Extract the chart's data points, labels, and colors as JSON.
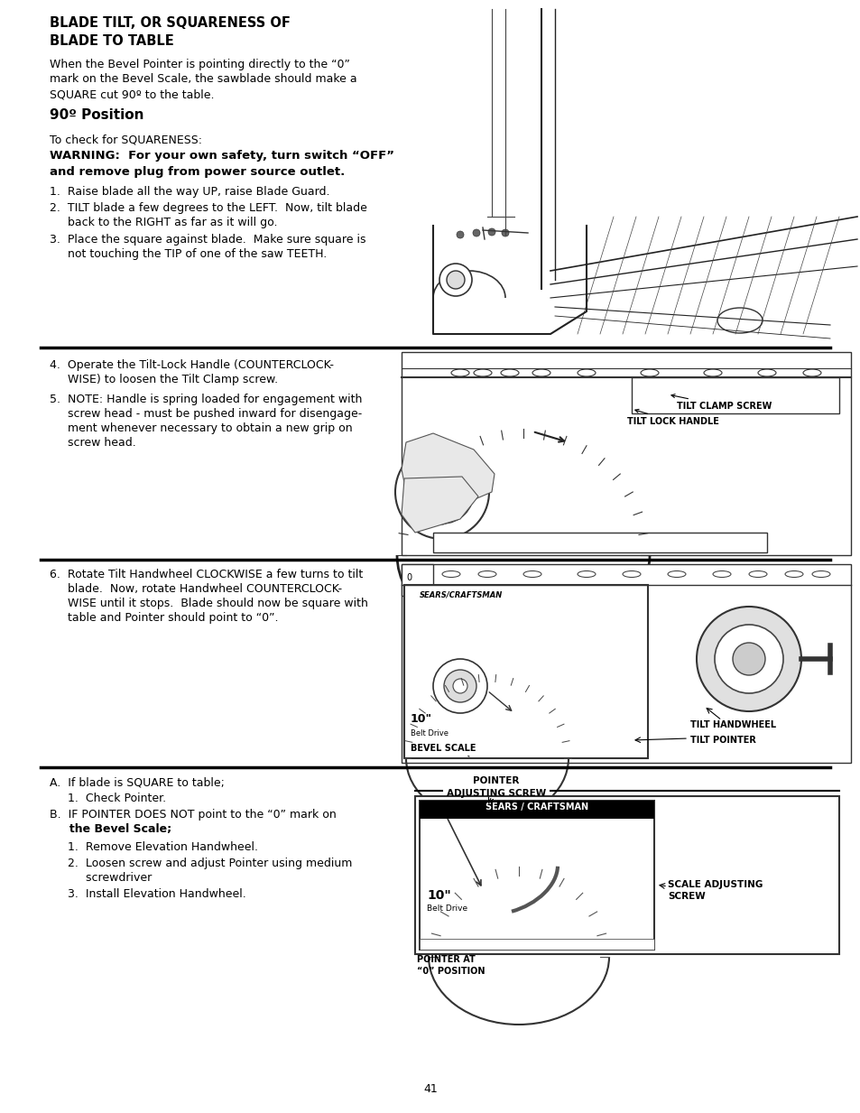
{
  "bg_color": "#ffffff",
  "page_number": "41",
  "title_line1": "BLADE TILT, OR SQUARENESS OF",
  "title_line2": "BLADE TO TABLE",
  "intro_text": "When the Bevel Pointer is pointing directly to the “0”\nmark on the Bevel Scale, the sawblade should make a\nSQUARE cut 90º to the table.",
  "subheading": "90º Position",
  "check_text": "To check for SQUARENESS:",
  "warning_line1": "WARNING:  For your own safety, turn switch “OFF”",
  "warning_line2": "and remove plug from power source outlet.",
  "step1": "1.  Raise blade all the way UP, raise Blade Guard.",
  "step2a": "2.  TILT blade a few degrees to the LEFT.  Now, tilt blade",
  "step2b": "     back to the RIGHT as far as it will go.",
  "step3a": "3.  Place the square against blade.  Make sure square is",
  "step3b": "     not touching the TIP of one of the saw TEETH.",
  "step4a": "4.  Operate the Tilt-Lock Handle (COUNTERCLOCK-",
  "step4b": "     WISE) to loosen the Tilt Clamp screw.",
  "step5a": "5.  NOTE: Handle is spring loaded for engagement with",
  "step5b": "     screw head - must be pushed inward for disengage-",
  "step5c": "     ment whenever necessary to obtain a new grip on",
  "step5d": "     screw head.",
  "step6a": "6.  Rotate Tilt Handwheel CLOCKWISE a few turns to tilt",
  "step6b": "     blade.  Now, rotate Handwheel COUNTERCLOCK-",
  "step6c": "     WISE until it stops.  Blade should now be square with",
  "step6d": "     table and Pointer should point to “0”.",
  "stepA": "A.  If blade is SQUARE to table;",
  "stepA1": "     1.  Check Pointer.",
  "stepB": "B.  IF POINTER DOES NOT point to the “0” mark on",
  "stepBb": "     the Bevel Scale;",
  "stepB1": "     1.  Remove Elevation Handwheel.",
  "stepB2a": "     2.  Loosen screw and adjust Pointer using medium",
  "stepB2b": "          screwdriver",
  "stepB3": "     3.  Install Elevation Handwheel.",
  "label_tilt_clamp": "TILT CLAMP SCREW",
  "label_tilt_lock": "TILT LOCK HANDLE",
  "label_bevel_scale": "BEVEL SCALE",
  "label_tilt_handwheel": "TILT HANDWHEEL",
  "label_tilt_pointer": "TILT POINTER",
  "label_pointer_adj": "POINTER\nADJUSTING SCREW",
  "label_scale_adj": "SCALE ADJUSTING\nSCREW",
  "label_pointer_at": "POINTER AT\n“0” POSITION",
  "label_sears_craftsman_3": "SEARS / CRAFTSMAN",
  "label_10inch": "10\"",
  "label_belt_drive": "Belt Drive"
}
